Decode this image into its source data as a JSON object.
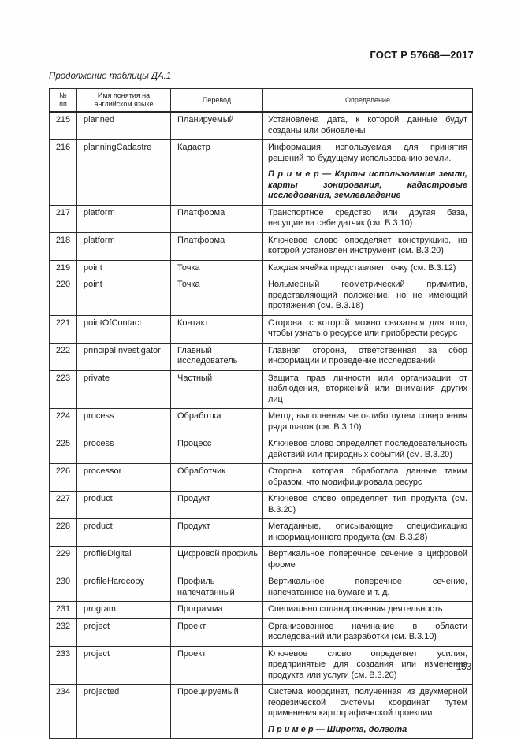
{
  "page": {
    "doc_header": "ГОСТ Р 57668—2017",
    "table_caption": "Продолжение таблицы ДА.1",
    "page_number": "153"
  },
  "table": {
    "columns": [
      "№\nпп",
      "Имя понятия на английском языке",
      "Перевод",
      "Определение"
    ],
    "rows": [
      {
        "num": "215",
        "en": "planned",
        "ru": "Планируемый",
        "def": "Установлена дата, к которой данные будут созданы или обновлены"
      },
      {
        "num": "216",
        "en": "planningCadastre",
        "ru": "Кадастр",
        "def": "Информация, используемая для принятия решений по будущему использованию земли.",
        "example": "П р и м е р  —  Карты использования земли, карты зонирования, кадастровые исследования, землевладение"
      },
      {
        "num": "217",
        "en": "platform",
        "ru": "Платформа",
        "def": "Транспортное средство или другая база, несущие на себе датчик (см. В.3.10)"
      },
      {
        "num": "218",
        "en": "platform",
        "ru": "Платформа",
        "def": "Ключевое слово определяет конструкцию, на которой установлен инструмент (см. В.3.20)"
      },
      {
        "num": "219",
        "en": "point",
        "ru": "Точка",
        "def": "Каждая ячейка представляет точку (см. В.3.12)"
      },
      {
        "num": "220",
        "en": "point",
        "ru": "Точка",
        "def": "Нольмерный геометрический примитив, представляющий положение, но не имеющий протяжения (см. В.3.18)"
      },
      {
        "num": "221",
        "en": "pointOfContact",
        "ru": "Контакт",
        "def": "Сторона, с которой можно связаться для того, чтобы узнать о ресурсе или приобрести ресурс"
      },
      {
        "num": "222",
        "en": "principalInvestigator",
        "ru": "Главный исследователь",
        "def": "Главная сторона, ответственная за сбор информации и проведение исследований"
      },
      {
        "num": "223",
        "en": "private",
        "ru": "Частный",
        "def": "Защита прав личности или организации от наблюдения, вторжений или внимания других лиц"
      },
      {
        "num": "224",
        "en": "process",
        "ru": "Обработка",
        "def": "Метод выполнения чего-либо путем совершения ряда шагов (см. В.3.10)"
      },
      {
        "num": "225",
        "en": "process",
        "ru": "Процесс",
        "def": "Ключевое слово определяет последовательность действий или природных событий (см. В.3.20)"
      },
      {
        "num": "226",
        "en": "processor",
        "ru": "Обработчик",
        "def": "Сторона, которая обработала данные таким образом, что модифицировала ресурс"
      },
      {
        "num": "227",
        "en": "product",
        "ru": "Продукт",
        "def": "Ключевое слово определяет тип продукта (см. В.3.20)"
      },
      {
        "num": "228",
        "en": "product",
        "ru": "Продукт",
        "def": "Метаданные, описывающие спецификацию информационного продукта (см. В.3.28)"
      },
      {
        "num": "229",
        "en": "profileDigital",
        "ru": "Цифровой профиль",
        "def": "Вертикальное поперечное сечение в цифровой форме"
      },
      {
        "num": "230",
        "en": "profileHardcopy",
        "ru": "Профиль напечатанный",
        "def": "Вертикальное поперечное сечение, напечатанное на бумаге и т. д."
      },
      {
        "num": "231",
        "en": "program",
        "ru": "Программа",
        "def": "Специально спланированная деятельность"
      },
      {
        "num": "232",
        "en": "project",
        "ru": "Проект",
        "def": "Организованное начинание в области исследований или разработки (см. В.3.10)"
      },
      {
        "num": "233",
        "en": "project",
        "ru": "Проект",
        "def": "Ключевое слово определяет усилия, предпринятые для создания или изменения продукта или услуги (см. В.3.20)"
      },
      {
        "num": "234",
        "en": "projected",
        "ru": "Проецируемый",
        "def": "Система координат, полученная из двухмерной геодезической системы координат путем применения картографической проекции.",
        "example": "П р и м е р  —  Широта, долгота"
      }
    ]
  }
}
